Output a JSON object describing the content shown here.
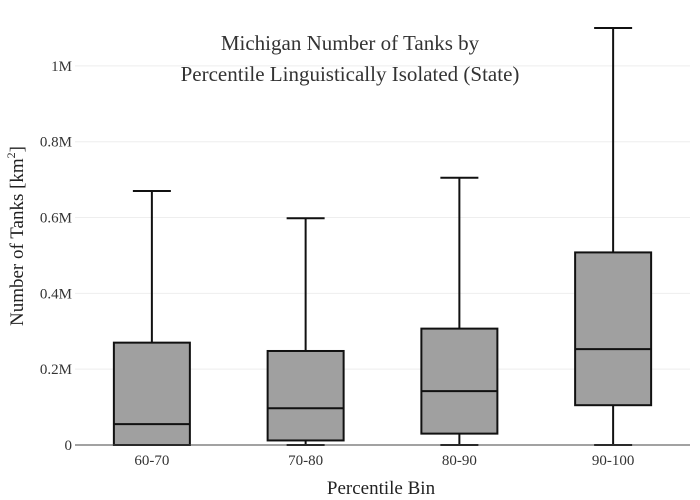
{
  "chart_data": {
    "type": "box",
    "title_lines": [
      "Michigan Number of Tanks by",
      "Percentile Linguistically Isolated (State)"
    ],
    "xlabel": "Percentile Bin",
    "ylabel": "Number of Tanks  [km",
    "ylabel_sup": "2",
    "ylabel_end": "]",
    "ylim": [
      0,
      1100000
    ],
    "yticks": [
      0,
      200000,
      400000,
      600000,
      800000,
      1000000
    ],
    "ytick_labels": [
      "0",
      "0.2M",
      "0.4M",
      "0.6M",
      "0.8M",
      "1M"
    ],
    "grid": true,
    "box_color": "#a0a0a0",
    "line_color": "#111111",
    "categories": [
      "60-70",
      "70-80",
      "80-90",
      "90-100"
    ],
    "boxes": [
      {
        "label": "60-70",
        "min": 0,
        "q1": 0,
        "median": 55000,
        "q3": 270000,
        "max": 670000
      },
      {
        "label": "70-80",
        "min": 0,
        "q1": 12000,
        "median": 97000,
        "q3": 248000,
        "max": 598000
      },
      {
        "label": "80-90",
        "min": 0,
        "q1": 30000,
        "median": 142000,
        "q3": 307000,
        "max": 705000
      },
      {
        "label": "90-100",
        "min": 0,
        "q1": 105000,
        "median": 253000,
        "q3": 508000,
        "max": 1100000
      }
    ]
  }
}
